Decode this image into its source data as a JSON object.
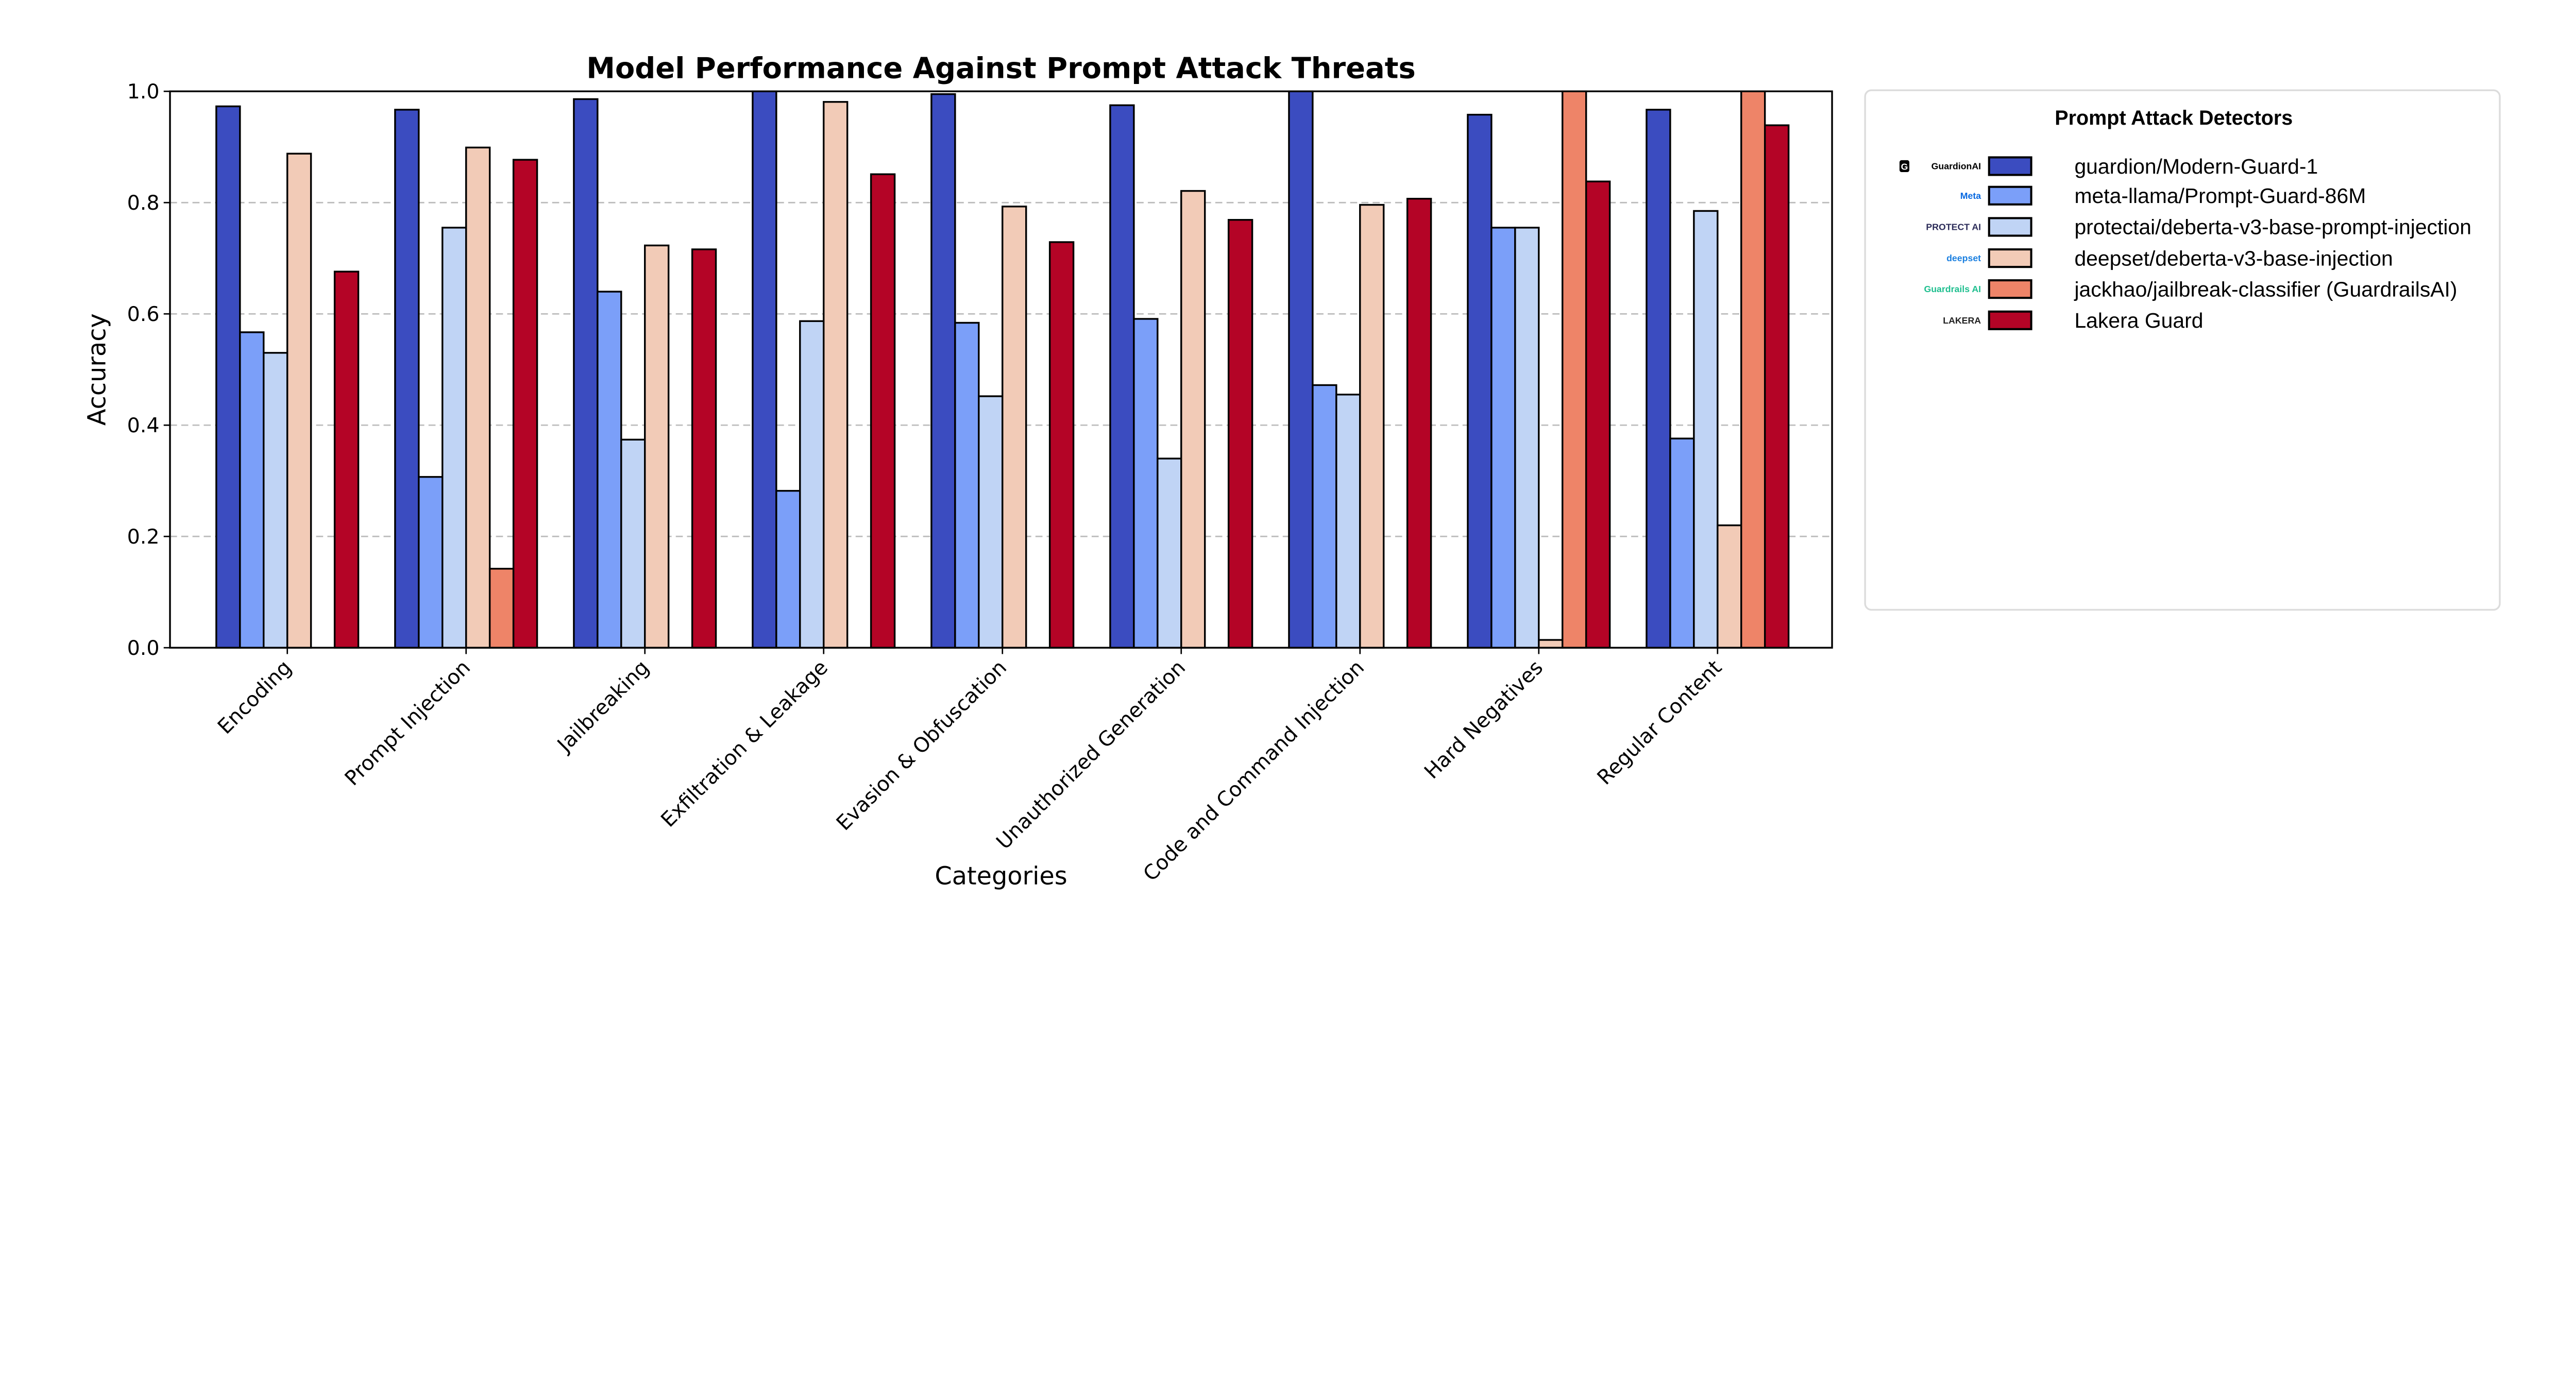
{
  "chart_data": {
    "type": "bar",
    "title": "Model Performance Against Prompt Attack Threats",
    "xlabel": "Categories",
    "ylabel": "Accuracy",
    "ylim": [
      0,
      1.0
    ],
    "yticks": [
      "0.0",
      "0.2",
      "0.4",
      "0.6",
      "0.8",
      "1.0"
    ],
    "grid": "horizontal dashed",
    "legend_placement": "right, outside",
    "categories": [
      "Encoding",
      "Prompt Injection",
      "Jailbreaking",
      "Exfiltration & Leakage",
      "Evasion & Obfuscation",
      "Unauthorized Generation",
      "Code and Command Injection",
      "Hard Negatives",
      "Regular Content"
    ],
    "series": [
      {
        "name": "guardion/Modern-Guard-1",
        "color": "#3b4cc0",
        "values": [
          0.973,
          0.967,
          0.986,
          1.0,
          0.995,
          0.975,
          1.0,
          0.958,
          0.967
        ]
      },
      {
        "name": "meta-llama/Prompt-Guard-86M",
        "color": "#7b9ff9",
        "values": [
          0.567,
          0.307,
          0.64,
          0.282,
          0.584,
          0.591,
          0.472,
          0.755,
          0.376
        ]
      },
      {
        "name": "protectai/deberta-v3-base-prompt-injection",
        "color": "#c0d4f5",
        "values": [
          0.53,
          0.755,
          0.374,
          0.587,
          0.452,
          0.34,
          0.455,
          0.755,
          0.785
        ]
      },
      {
        "name": "deepset/deberta-v3-base-injection",
        "color": "#f2cbb7",
        "values": [
          0.888,
          0.899,
          0.723,
          0.981,
          0.793,
          0.821,
          0.796,
          0.014,
          0.22
        ]
      },
      {
        "name": "jackhao/jailbreak-classifier (GuardrailsAI)",
        "color": "#ee8468",
        "values": [
          null,
          0.142,
          null,
          null,
          null,
          null,
          null,
          1.0,
          1.0
        ]
      },
      {
        "name": "Lakera Guard",
        "color": "#b40426",
        "values": [
          0.676,
          0.877,
          0.716,
          0.851,
          0.729,
          0.769,
          0.807,
          0.838,
          0.939
        ]
      }
    ]
  },
  "legend": {
    "title": "Prompt Attack Detectors",
    "logos": [
      {
        "text": "GuardionAI",
        "icon": "guardion-logo",
        "color": "#000000"
      },
      {
        "text": "Meta",
        "icon": "meta-infinity-logo",
        "color": "#0668e1"
      },
      {
        "text": "PROTECT AI",
        "icon": "protectai-shield-logo",
        "color": "#2d2d5a"
      },
      {
        "text": "deepset",
        "icon": "deepset-logo",
        "color": "#1a7fe0"
      },
      {
        "text": "Guardrails AI",
        "icon": "guardrails-logo",
        "color": "#1fbf8f"
      },
      {
        "text": "LAKERA",
        "icon": "lakera-logo",
        "color": "#222222"
      }
    ]
  }
}
